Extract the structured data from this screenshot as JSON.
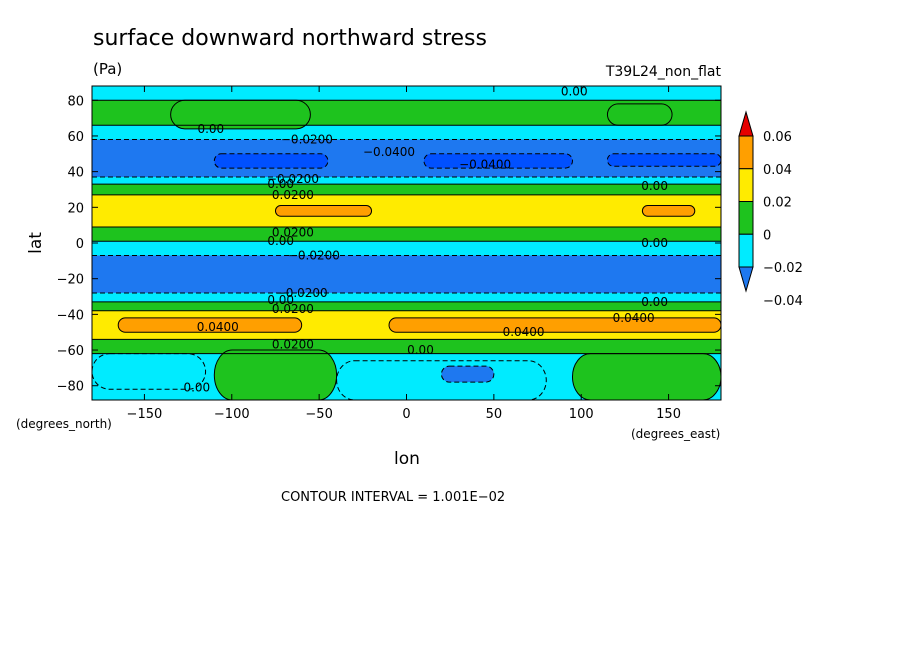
{
  "chart_data": {
    "type": "heatmap",
    "title": "surface downward northward stress",
    "units": "(Pa)",
    "model_label": "T39L24_non_flat",
    "xlabel": "lon",
    "ylabel": "lat",
    "x_units_note": "(degrees_east)",
    "y_units_note": "(degrees_north)",
    "xlim": [
      -180,
      180
    ],
    "ylim": [
      -88,
      88
    ],
    "x_ticks": [
      -150,
      -100,
      -50,
      0,
      50,
      100,
      150
    ],
    "x_tick_labels": [
      "−150",
      "−100",
      "−50",
      "0",
      "50",
      "100",
      "150"
    ],
    "y_ticks": [
      80,
      60,
      40,
      20,
      0,
      -20,
      -40,
      -60,
      -80
    ],
    "y_tick_labels": [
      "80",
      "60",
      "40",
      "20",
      "0",
      "−20",
      "−40",
      "−60",
      "−80"
    ],
    "contour_interval_text": "CONTOUR INTERVAL = 1.001E−02",
    "colorbar": {
      "levels": [
        -0.04,
        -0.02,
        0,
        0.02,
        0.04,
        0.06
      ],
      "labels": [
        "−0.04",
        "−0.02",
        "0",
        "0.02",
        "0.04",
        "0.06"
      ],
      "colors": [
        "#1e78f0",
        "#00ebff",
        "#1ec31e",
        "#ffeb00",
        "#ff9f00",
        "#e60000"
      ]
    },
    "band_colors": {
      "lt_m04": "#0050ff",
      "m04_m02": "#1e78f0",
      "m02_0": "#00ebff",
      "0_02": "#1ec31e",
      "02_04": "#ffeb00",
      "04_06": "#ff9f00"
    },
    "zonal_bands": [
      {
        "lat_top": 88,
        "lat_bottom": 80,
        "class": "m02_0"
      },
      {
        "lat_top": 80,
        "lat_bottom": 66,
        "class": "0_02"
      },
      {
        "lat_top": 66,
        "lat_bottom": 58,
        "class": "m02_0"
      },
      {
        "lat_top": 58,
        "lat_bottom": 37,
        "class": "m04_m02"
      },
      {
        "lat_top": 37,
        "lat_bottom": 33,
        "class": "m02_0"
      },
      {
        "lat_top": 33,
        "lat_bottom": 27,
        "class": "0_02"
      },
      {
        "lat_top": 27,
        "lat_bottom": 9,
        "class": "02_04"
      },
      {
        "lat_top": 9,
        "lat_bottom": 1,
        "class": "0_02"
      },
      {
        "lat_top": 1,
        "lat_bottom": -7,
        "class": "m02_0"
      },
      {
        "lat_top": -7,
        "lat_bottom": -28,
        "class": "m04_m02"
      },
      {
        "lat_top": -28,
        "lat_bottom": -33,
        "class": "m02_0"
      },
      {
        "lat_top": -33,
        "lat_bottom": -38,
        "class": "0_02"
      },
      {
        "lat_top": -38,
        "lat_bottom": -54,
        "class": "02_04"
      },
      {
        "lat_top": -54,
        "lat_bottom": -62,
        "class": "0_02"
      },
      {
        "lat_top": -62,
        "lat_bottom": -88,
        "class": "m02_0"
      }
    ],
    "patches": [
      {
        "lon_min": -135,
        "lon_max": -55,
        "lat_min": 64,
        "lat_max": 80,
        "class": "0_02"
      },
      {
        "lon_min": 115,
        "lon_max": 152,
        "lat_min": 66,
        "lat_max": 78,
        "class": "0_02"
      },
      {
        "lon_min": -110,
        "lon_max": -45,
        "lat_min": 42,
        "lat_max": 50,
        "class": "lt_m04"
      },
      {
        "lon_min": 10,
        "lon_max": 95,
        "lat_min": 42,
        "lat_max": 50,
        "class": "lt_m04"
      },
      {
        "lon_min": 115,
        "lon_max": 180,
        "lat_min": 43,
        "lat_max": 50,
        "class": "lt_m04"
      },
      {
        "lon_min": -75,
        "lon_max": -20,
        "lat_min": 15,
        "lat_max": 21,
        "class": "04_06"
      },
      {
        "lon_min": 135,
        "lon_max": 165,
        "lat_min": 15,
        "lat_max": 21,
        "class": "04_06"
      },
      {
        "lon_min": -165,
        "lon_max": -60,
        "lat_min": -50,
        "lat_max": -42,
        "class": "04_06"
      },
      {
        "lon_min": -10,
        "lon_max": 180,
        "lat_min": -50,
        "lat_max": -42,
        "class": "04_06"
      },
      {
        "lon_min": -180,
        "lon_max": -115,
        "lat_min": -82,
        "lat_max": -62,
        "class": "m02_0"
      },
      {
        "lon_min": -110,
        "lon_max": -40,
        "lat_min": -88,
        "lat_max": -60,
        "class": "0_02"
      },
      {
        "lon_min": -40,
        "lon_max": 80,
        "lat_min": -88,
        "lat_max": -66,
        "class": "m02_0"
      },
      {
        "lon_min": 20,
        "lon_max": 50,
        "lat_min": -78,
        "lat_max": -69,
        "class": "m04_m02"
      },
      {
        "lon_min": 95,
        "lon_max": 180,
        "lat_min": -88,
        "lat_max": -62,
        "class": "0_02"
      }
    ],
    "contour_labels": [
      {
        "lon": 96,
        "lat": 85,
        "text": "0.00"
      },
      {
        "lon": -112,
        "lat": 64,
        "text": "0.00"
      },
      {
        "lon": -57,
        "lat": 58,
        "text": "−0.0200"
      },
      {
        "lon": -10,
        "lat": 51,
        "text": "−0.0400"
      },
      {
        "lon": 45,
        "lat": 44,
        "text": "−0.0400"
      },
      {
        "lon": -72,
        "lat": 33,
        "text": "0.00"
      },
      {
        "lon": -65,
        "lat": 36,
        "text": "−0.0200"
      },
      {
        "lon": -65,
        "lat": 27,
        "text": "0.0200"
      },
      {
        "lon": 142,
        "lat": 32,
        "text": "0.00"
      },
      {
        "lon": -65,
        "lat": 6,
        "text": "0.0200"
      },
      {
        "lon": -72,
        "lat": 1,
        "text": "0.00"
      },
      {
        "lon": 142,
        "lat": 0,
        "text": "0.00"
      },
      {
        "lon": -53,
        "lat": -7,
        "text": "−0.0200"
      },
      {
        "lon": -60,
        "lat": -28,
        "text": "−0.0200"
      },
      {
        "lon": -72,
        "lat": -32,
        "text": "0.00"
      },
      {
        "lon": -65,
        "lat": -37,
        "text": "0.0200"
      },
      {
        "lon": 142,
        "lat": -33,
        "text": "0.00"
      },
      {
        "lon": 130,
        "lat": -42,
        "text": "0.0400"
      },
      {
        "lon": -108,
        "lat": -47,
        "text": "0.0400"
      },
      {
        "lon": 67,
        "lat": -50,
        "text": "0.0400"
      },
      {
        "lon": -65,
        "lat": -57,
        "text": "0.0200"
      },
      {
        "lon": 8,
        "lat": -60,
        "text": "0.00"
      },
      {
        "lon": -120,
        "lat": -81,
        "text": "0.00"
      }
    ]
  }
}
